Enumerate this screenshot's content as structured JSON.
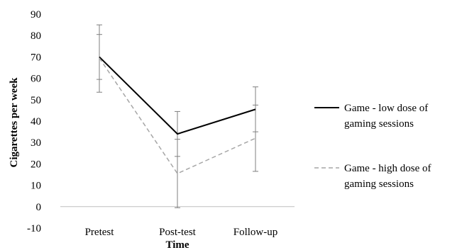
{
  "chart_data": {
    "type": "line",
    "categories": [
      "Pretest",
      "Post-test",
      "Follow-up"
    ],
    "xlabel": "Time",
    "ylabel": "Cigarettes per week",
    "ylim": [
      -10,
      90
    ],
    "yticks": [
      "-10",
      "0",
      "10",
      "20",
      "30",
      "40",
      "50",
      "60",
      "70",
      "80",
      "90"
    ],
    "grid": false,
    "legend_position": "right",
    "series": [
      {
        "name": "Game - low dose of gaming sessions",
        "name_lines": [
          "Game - low dose of",
          "gaming sessions"
        ],
        "values": [
          70,
          34,
          45.5
        ],
        "error_low": [
          59.5,
          23.5,
          35
        ],
        "error_high": [
          80.5,
          44.5,
          56
        ],
        "color": "#000000",
        "style": "solid"
      },
      {
        "name": "Game - high dose of gaming sessions",
        "name_lines": [
          "Game - high dose of",
          "gaming sessions"
        ],
        "values": [
          69.5,
          15.5,
          32
        ],
        "error_low": [
          53.5,
          -0.5,
          16.5
        ],
        "error_high": [
          85,
          31.5,
          47.5
        ],
        "color": "#a6a6a6",
        "style": "dashed"
      }
    ]
  }
}
